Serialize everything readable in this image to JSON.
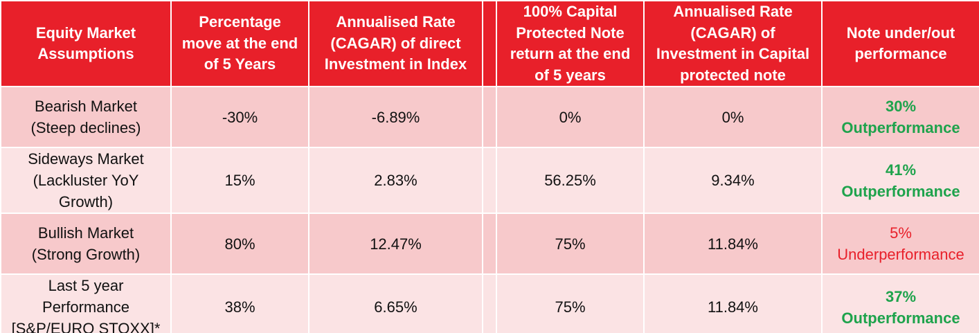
{
  "table": {
    "header": [
      [
        "Equity Market",
        "Assumptions"
      ],
      [
        "Percentage",
        "move at the end",
        "of 5 Years"
      ],
      [
        "Annualised Rate",
        "(CAGAR) of direct",
        "Investment in Index"
      ],
      [
        "100% Capital",
        "Protected Note",
        "return at the end",
        "of 5 years"
      ],
      [
        "Annualised Rate",
        "(CAGAR) of",
        "Investment in Capital",
        "protected note"
      ],
      [
        "Note under/out",
        "performance"
      ]
    ],
    "rows": [
      {
        "scenario": [
          "Bearish Market",
          "(Steep declines)"
        ],
        "move": "-30%",
        "index_cagr": "-6.89%",
        "note_return": "0%",
        "note_cagr": "0%",
        "result": [
          "30%",
          "Outperformance"
        ],
        "result_color": "#1ea34c",
        "result_bold": true
      },
      {
        "scenario": [
          "Sideways Market",
          "(Lackluster YoY",
          "Growth)"
        ],
        "move": "15%",
        "index_cagr": "2.83%",
        "note_return": "56.25%",
        "note_cagr": "9.34%",
        "result": [
          "41%",
          "Outperformance"
        ],
        "result_color": "#1ea34c",
        "result_bold": true
      },
      {
        "scenario": [
          "Bullish Market",
          "(Strong Growth)"
        ],
        "move": "80%",
        "index_cagr": "12.47%",
        "note_return": "75%",
        "note_cagr": "11.84%",
        "result": [
          "5%",
          "Underperformance"
        ],
        "result_color": "#e8202a",
        "result_bold": false
      },
      {
        "scenario": [
          "Last 5 year",
          "Performance",
          "[S&P/EURO STOXX]*"
        ],
        "move": "38%",
        "index_cagr": "6.65%",
        "note_return": "75%",
        "note_cagr": "11.84%",
        "result": [
          "37%",
          "Outperformance"
        ],
        "result_color": "#1ea34c",
        "result_bold": true
      }
    ]
  }
}
